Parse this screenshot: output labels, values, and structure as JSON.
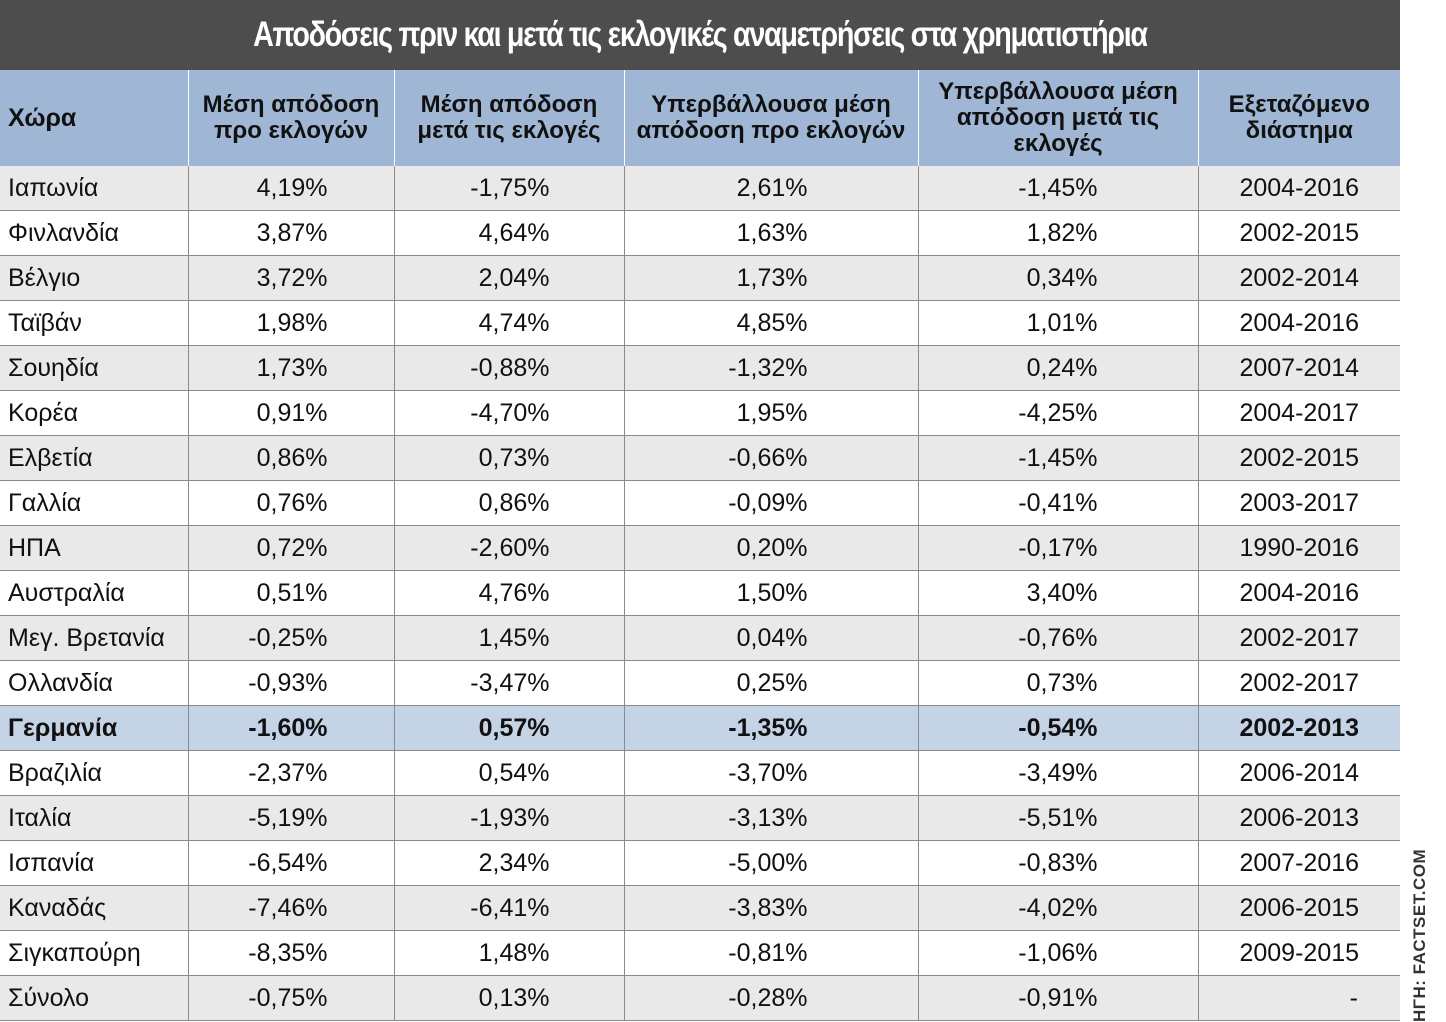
{
  "title": "Αποδόσεις πριν και μετά τις εκλογικές αναμετρήσεις στα χρηματιστήρια",
  "columns": [
    "Χώρα",
    "Μέση απόδοση προ εκλογών",
    "Μέση απόδοση μετά τις εκλογές",
    "Υπερβάλλουσα μέση απόδοση προ εκλογών",
    "Υπερβάλλουσα μέση απόδοση μετά τις εκλογές",
    "Εξεταζόμενο διάστημα"
  ],
  "rows": [
    {
      "country": "Ιαπωνία",
      "pre": "4,19%",
      "post": "-1,75%",
      "excess_pre": "2,61%",
      "excess_post": "-1,45%",
      "period": "2004-2016"
    },
    {
      "country": "Φινλανδία",
      "pre": "3,87%",
      "post": "4,64%",
      "excess_pre": "1,63%",
      "excess_post": "1,82%",
      "period": "2002-2015"
    },
    {
      "country": "Βέλγιο",
      "pre": "3,72%",
      "post": "2,04%",
      "excess_pre": "1,73%",
      "excess_post": "0,34%",
      "period": "2002-2014"
    },
    {
      "country": "Ταϊβάν",
      "pre": "1,98%",
      "post": "4,74%",
      "excess_pre": "4,85%",
      "excess_post": "1,01%",
      "period": "2004-2016"
    },
    {
      "country": "Σουηδία",
      "pre": "1,73%",
      "post": "-0,88%",
      "excess_pre": "-1,32%",
      "excess_post": "0,24%",
      "period": "2007-2014"
    },
    {
      "country": "Κορέα",
      "pre": "0,91%",
      "post": "-4,70%",
      "excess_pre": "1,95%",
      "excess_post": "-4,25%",
      "period": "2004-2017"
    },
    {
      "country": "Ελβετία",
      "pre": "0,86%",
      "post": "0,73%",
      "excess_pre": "-0,66%",
      "excess_post": "-1,45%",
      "period": "2002-2015"
    },
    {
      "country": "Γαλλία",
      "pre": "0,76%",
      "post": "0,86%",
      "excess_pre": "-0,09%",
      "excess_post": "-0,41%",
      "period": "2003-2017"
    },
    {
      "country": "ΗΠΑ",
      "pre": "0,72%",
      "post": "-2,60%",
      "excess_pre": "0,20%",
      "excess_post": "-0,17%",
      "period": "1990-2016"
    },
    {
      "country": "Αυστραλία",
      "pre": "0,51%",
      "post": "4,76%",
      "excess_pre": "1,50%",
      "excess_post": "3,40%",
      "period": "2004-2016"
    },
    {
      "country": "Μεγ. Βρετανία",
      "pre": "-0,25%",
      "post": "1,45%",
      "excess_pre": "0,04%",
      "excess_post": "-0,76%",
      "period": "2002-2017"
    },
    {
      "country": "Ολλανδία",
      "pre": "-0,93%",
      "post": "-3,47%",
      "excess_pre": "0,25%",
      "excess_post": "0,73%",
      "period": "2002-2017"
    },
    {
      "country": "Γερμανία",
      "pre": "-1,60%",
      "post": "0,57%",
      "excess_pre": "-1,35%",
      "excess_post": "-0,54%",
      "period": "2002-2013",
      "highlight": true
    },
    {
      "country": "Βραζιλία",
      "pre": "-2,37%",
      "post": "0,54%",
      "excess_pre": "-3,70%",
      "excess_post": "-3,49%",
      "period": "2006-2014"
    },
    {
      "country": "Ιταλία",
      "pre": "-5,19%",
      "post": "-1,93%",
      "excess_pre": "-3,13%",
      "excess_post": "-5,51%",
      "period": "2006-2013"
    },
    {
      "country": "Ισπανία",
      "pre": "-6,54%",
      "post": "2,34%",
      "excess_pre": "-5,00%",
      "excess_post": "-0,83%",
      "period": "2007-2016"
    },
    {
      "country": "Καναδάς",
      "pre": "-7,46%",
      "post": "-6,41%",
      "excess_pre": "-3,83%",
      "excess_post": "-4,02%",
      "period": "2006-2015"
    },
    {
      "country": "Σιγκαπούρη",
      "pre": "-8,35%",
      "post": "1,48%",
      "excess_pre": "-0,81%",
      "excess_post": "-1,06%",
      "period": "2009-2015"
    },
    {
      "country": "Σύνολο",
      "pre": "-0,75%",
      "post": "0,13%",
      "excess_pre": "-0,28%",
      "excess_post": "-0,91%",
      "period": "-"
    }
  ],
  "source_label": "ΗΓΗ: FACTSET.COM",
  "colors": {
    "title_bg": "#4d4d4d",
    "header_bg": "#9fb6d4",
    "row_odd": "#e9e9e9",
    "row_even": "#ffffff",
    "highlight_row": "#c5d3e6"
  }
}
